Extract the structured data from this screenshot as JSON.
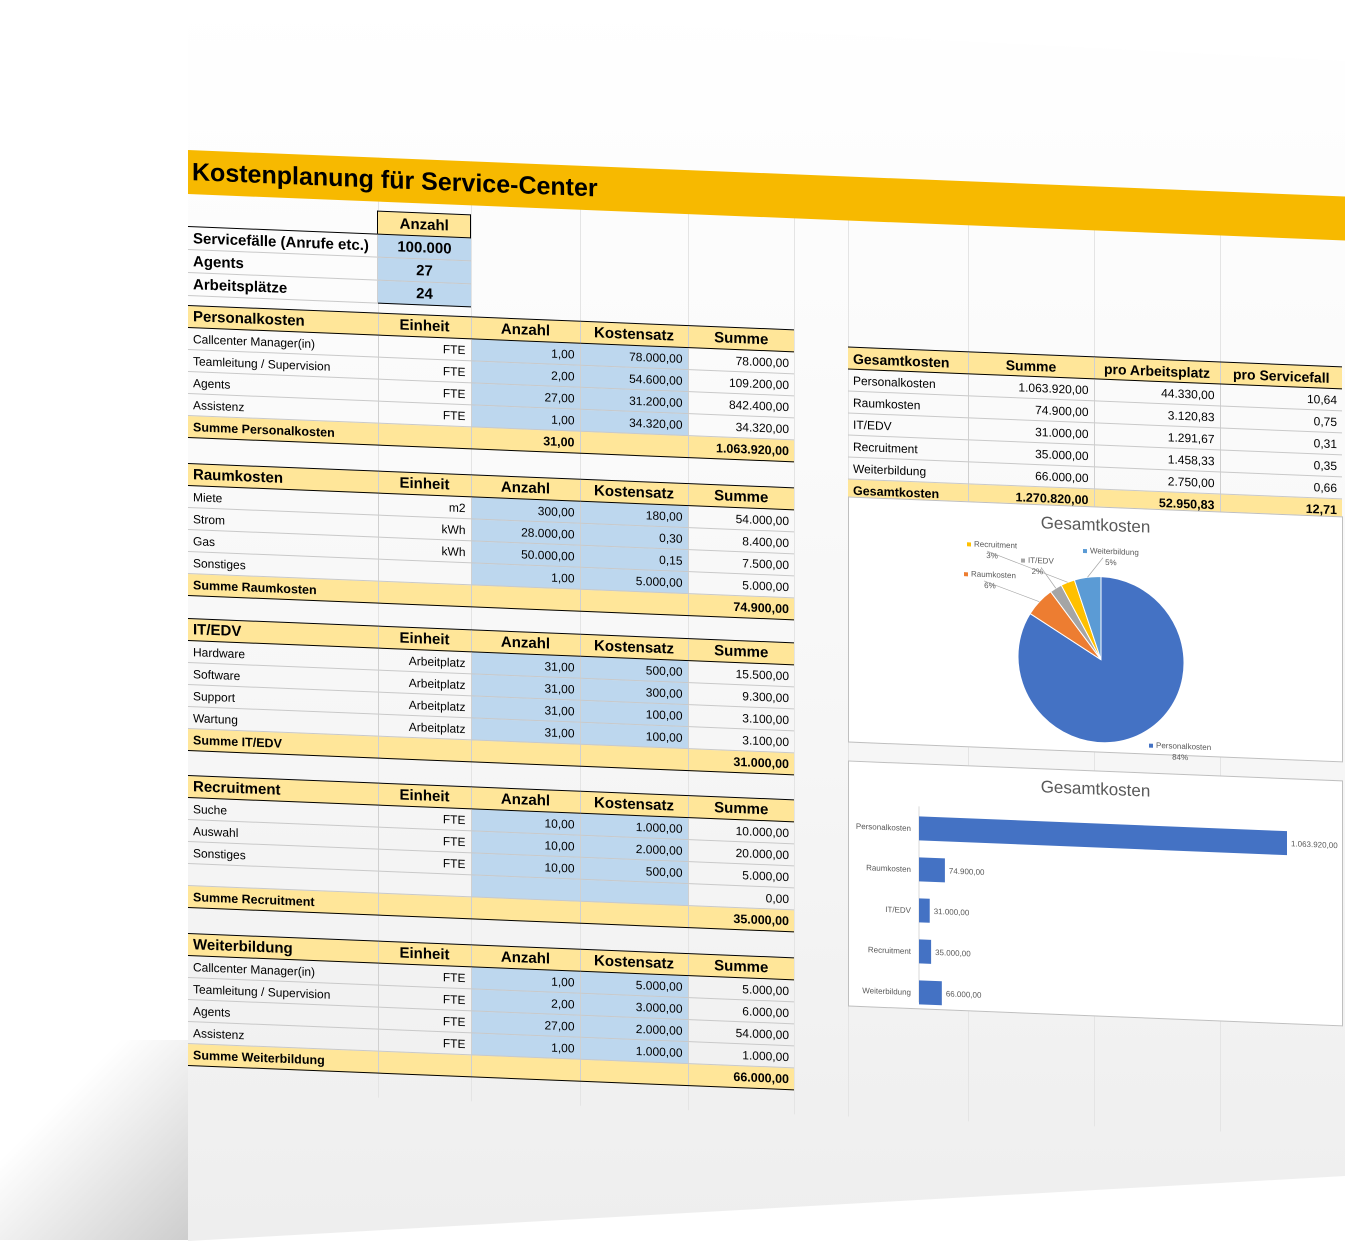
{
  "title": "Kostenplanung für Service-Center",
  "inputs": {
    "header": "Anzahl",
    "rows": [
      {
        "label": "Servicefälle (Anrufe etc.)",
        "value": "100.000"
      },
      {
        "label": "Agents",
        "value": "27"
      },
      {
        "label": "Arbeitsplätze",
        "value": "24"
      }
    ]
  },
  "sections": [
    {
      "name": "Personalkosten",
      "headers": [
        "Einheit",
        "Anzahl",
        "Kostensatz",
        "Summe"
      ],
      "rows": [
        {
          "label": "Callcenter Manager(in)",
          "unit": "FTE",
          "qty": "1,00",
          "rate": "78.000,00",
          "sum": "78.000,00"
        },
        {
          "label": "Teamleitung / Supervision",
          "unit": "FTE",
          "qty": "2,00",
          "rate": "54.600,00",
          "sum": "109.200,00"
        },
        {
          "label": "Agents",
          "unit": "FTE",
          "qty": "27,00",
          "rate": "31.200,00",
          "sum": "842.400,00"
        },
        {
          "label": "Assistenz",
          "unit": "FTE",
          "qty": "1,00",
          "rate": "34.320,00",
          "sum": "34.320,00"
        }
      ],
      "total": {
        "label": "Summe Personalkosten",
        "qty": "31,00",
        "sum": "1.063.920,00"
      }
    },
    {
      "name": "Raumkosten",
      "headers": [
        "Einheit",
        "Anzahl",
        "Kostensatz",
        "Summe"
      ],
      "rows": [
        {
          "label": "Miete",
          "unit": "m2",
          "qty": "300,00",
          "rate": "180,00",
          "sum": "54.000,00"
        },
        {
          "label": "Strom",
          "unit": "kWh",
          "qty": "28.000,00",
          "rate": "0,30",
          "sum": "8.400,00"
        },
        {
          "label": "Gas",
          "unit": "kWh",
          "qty": "50.000,00",
          "rate": "0,15",
          "sum": "7.500,00"
        },
        {
          "label": "Sonstiges",
          "unit": "",
          "qty": "1,00",
          "rate": "5.000,00",
          "sum": "5.000,00"
        }
      ],
      "total": {
        "label": "Summe Raumkosten",
        "qty": "",
        "sum": "74.900,00"
      }
    },
    {
      "name": "IT/EDV",
      "headers": [
        "Einheit",
        "Anzahl",
        "Kostensatz",
        "Summe"
      ],
      "rows": [
        {
          "label": "Hardware",
          "unit": "Arbeitplatz",
          "qty": "31,00",
          "rate": "500,00",
          "sum": "15.500,00"
        },
        {
          "label": "Software",
          "unit": "Arbeitplatz",
          "qty": "31,00",
          "rate": "300,00",
          "sum": "9.300,00"
        },
        {
          "label": "Support",
          "unit": "Arbeitplatz",
          "qty": "31,00",
          "rate": "100,00",
          "sum": "3.100,00"
        },
        {
          "label": "Wartung",
          "unit": "Arbeitplatz",
          "qty": "31,00",
          "rate": "100,00",
          "sum": "3.100,00"
        }
      ],
      "total": {
        "label": "Summe IT/EDV",
        "qty": "",
        "sum": "31.000,00"
      }
    },
    {
      "name": "Recruitment",
      "headers": [
        "Einheit",
        "Anzahl",
        "Kostensatz",
        "Summe"
      ],
      "rows": [
        {
          "label": "Suche",
          "unit": "FTE",
          "qty": "10,00",
          "rate": "1.000,00",
          "sum": "10.000,00"
        },
        {
          "label": "Auswahl",
          "unit": "FTE",
          "qty": "10,00",
          "rate": "2.000,00",
          "sum": "20.000,00"
        },
        {
          "label": "Sonstiges",
          "unit": "FTE",
          "qty": "10,00",
          "rate": "500,00",
          "sum": "5.000,00"
        },
        {
          "label": "",
          "unit": "",
          "qty": "",
          "rate": "",
          "sum": "0,00"
        }
      ],
      "total": {
        "label": "Summe Recruitment",
        "qty": "",
        "sum": "35.000,00"
      }
    },
    {
      "name": "Weiterbildung",
      "headers": [
        "Einheit",
        "Anzahl",
        "Kostensatz",
        "Summe"
      ],
      "rows": [
        {
          "label": "Callcenter Manager(in)",
          "unit": "FTE",
          "qty": "1,00",
          "rate": "5.000,00",
          "sum": "5.000,00"
        },
        {
          "label": "Teamleitung / Supervision",
          "unit": "FTE",
          "qty": "2,00",
          "rate": "3.000,00",
          "sum": "6.000,00"
        },
        {
          "label": "Agents",
          "unit": "FTE",
          "qty": "27,00",
          "rate": "2.000,00",
          "sum": "54.000,00"
        },
        {
          "label": "Assistenz",
          "unit": "FTE",
          "qty": "1,00",
          "rate": "1.000,00",
          "sum": "1.000,00"
        }
      ],
      "total": {
        "label": "Summe Weiterbildung",
        "qty": "",
        "sum": "66.000,00"
      }
    }
  ],
  "summary": {
    "headers": [
      "Gesamtkosten",
      "Summe",
      "pro Arbeitsplatz",
      "pro Servicefall"
    ],
    "rows": [
      {
        "label": "Personalkosten",
        "sum": "1.063.920,00",
        "per_seat": "44.330,00",
        "per_case": "10,64"
      },
      {
        "label": "Raumkosten",
        "sum": "74.900,00",
        "per_seat": "3.120,83",
        "per_case": "0,75"
      },
      {
        "label": "IT/EDV",
        "sum": "31.000,00",
        "per_seat": "1.291,67",
        "per_case": "0,31"
      },
      {
        "label": "Recruitment",
        "sum": "35.000,00",
        "per_seat": "1.458,33",
        "per_case": "0,35"
      },
      {
        "label": "Weiterbildung",
        "sum": "66.000,00",
        "per_seat": "2.750,00",
        "per_case": "0,66"
      }
    ],
    "total": {
      "label": "Gesamtkosten",
      "sum": "1.270.820,00",
      "per_seat": "52.950,83",
      "per_case": "12,71"
    }
  },
  "chart_data": [
    {
      "type": "pie",
      "title": "Gesamtkosten",
      "categories": [
        "Personalkosten",
        "Raumkosten",
        "IT/EDV",
        "Recruitment",
        "Weiterbildung"
      ],
      "values": [
        1063920,
        74900,
        31000,
        35000,
        66000
      ],
      "percent_labels": [
        "84%",
        "6%",
        "2%",
        "3%",
        "5%"
      ],
      "colors": [
        "#4472c4",
        "#ed7d31",
        "#a5a5a5",
        "#ffc000",
        "#5b9bd5"
      ]
    },
    {
      "type": "bar",
      "orientation": "horizontal",
      "title": "Gesamtkosten",
      "categories": [
        "Personalkosten",
        "Raumkosten",
        "IT/EDV",
        "Recruitment",
        "Weiterbildung"
      ],
      "values": [
        1063920,
        74900,
        31000,
        35000,
        66000
      ],
      "value_labels": [
        "1.063.920,00",
        "74.900,00",
        "31.000,00",
        "35.000,00",
        "66.000,00"
      ],
      "color": "#4472c4"
    }
  ]
}
